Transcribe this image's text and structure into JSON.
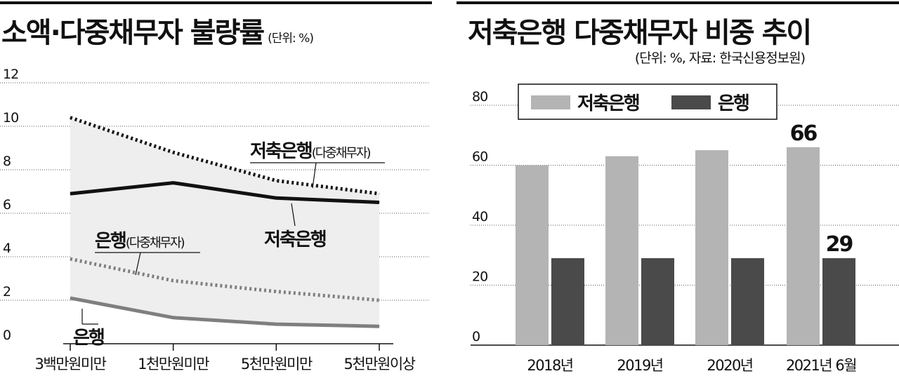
{
  "chart_data": [
    {
      "type": "line",
      "title": "소액·다중채무자 불량률",
      "unit": "(단위: %)",
      "categories": [
        "3백만원미만",
        "1천만원미만",
        "5천만원미만",
        "5천만원이상"
      ],
      "y_ticks": [
        "12",
        "10",
        "8",
        "6",
        "4",
        "2",
        "0"
      ],
      "ylim": [
        0,
        12
      ],
      "grid": "horizontal-dotted",
      "series": [
        {
          "name": "저축은행(다중채무자)",
          "name_main": "저축은행",
          "name_sub": "(다중채무자)",
          "style": "dotted-dark",
          "values": [
            10.4,
            8.8,
            7.5,
            6.9
          ]
        },
        {
          "name": "저축은행",
          "style": "solid-dark",
          "values": [
            6.9,
            7.4,
            6.7,
            6.5
          ]
        },
        {
          "name": "은행(다중채무자)",
          "name_main": "은행",
          "name_sub": "(다중채무자)",
          "style": "dotted-gray",
          "values": [
            3.9,
            2.9,
            2.4,
            2.0
          ]
        },
        {
          "name": "은행",
          "style": "solid-gray",
          "values": [
            2.1,
            1.2,
            0.9,
            0.8
          ]
        }
      ],
      "colors": {
        "dark": "#111111",
        "gray": "#7f7f7f",
        "shade": "#eeeeee"
      }
    },
    {
      "type": "bar",
      "title": "저축은행 다중채무자 비중 추이",
      "unit": "(단위: %, 자료: 한국신용정보원)",
      "categories": [
        "2018년",
        "2019년",
        "2020년",
        "2021년 6월"
      ],
      "y_ticks": [
        "80",
        "60",
        "40",
        "20",
        "0"
      ],
      "ylim": [
        0,
        80
      ],
      "grid": "horizontal-dotted",
      "legend": "top-left",
      "series": [
        {
          "name": "저축은행",
          "color": "#b4b4b4",
          "values": [
            60,
            63,
            65,
            66
          ]
        },
        {
          "name": "은행",
          "color": "#4a4a4a",
          "values": [
            29,
            29,
            29,
            29
          ]
        }
      ],
      "data_labels": {
        "0": {
          "3": "66"
        },
        "1": {
          "3": "29"
        }
      }
    }
  ]
}
